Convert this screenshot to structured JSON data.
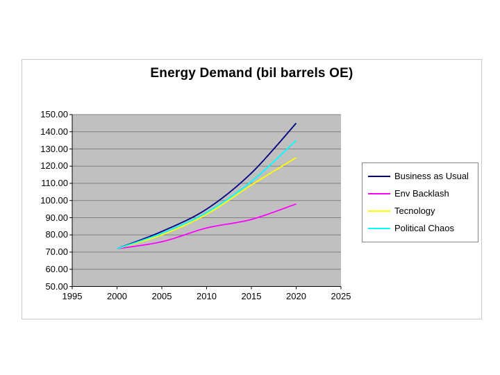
{
  "page": {
    "background_color": "#ffffff"
  },
  "chart": {
    "frame_border_color": "#c9c9c9",
    "plot_background_color": "#c0c0c0",
    "gridline_color": "#808080",
    "axis_color": "#000000",
    "legend_border_color": "#848484",
    "legend_background_color": "#ffffff"
  },
  "chart_data": {
    "type": "line",
    "title": "Energy Demand (bil barrels OE)",
    "xlabel": "",
    "ylabel": "",
    "xlim": [
      1995,
      2025
    ],
    "ylim": [
      50,
      150
    ],
    "grid": true,
    "legend_position": "right",
    "x_ticks": [
      1995,
      2000,
      2005,
      2010,
      2015,
      2020,
      2025
    ],
    "y_ticks": [
      "150.00",
      "140.00",
      "130.00",
      "120.00",
      "110.00",
      "100.00",
      "90.00",
      "80.00",
      "70.00",
      "60.00",
      "50.00"
    ],
    "x": [
      2000,
      2005,
      2010,
      2015,
      2020
    ],
    "series": [
      {
        "name": "Business as Usual",
        "color": "#000080",
        "values": [
          72,
          82,
          95,
          116,
          145
        ]
      },
      {
        "name": "Env Backlash",
        "color": "#ff00ff",
        "values": [
          72,
          76,
          84,
          89,
          98
        ]
      },
      {
        "name": "Tecnology",
        "color": "#ffff00",
        "values": [
          72,
          80,
          92,
          109,
          125
        ]
      },
      {
        "name": "Political Chaos",
        "color": "#00ffff",
        "values": [
          72,
          81,
          93,
          111,
          135
        ]
      }
    ],
    "draw_order": [
      0,
      1,
      2,
      3
    ]
  }
}
